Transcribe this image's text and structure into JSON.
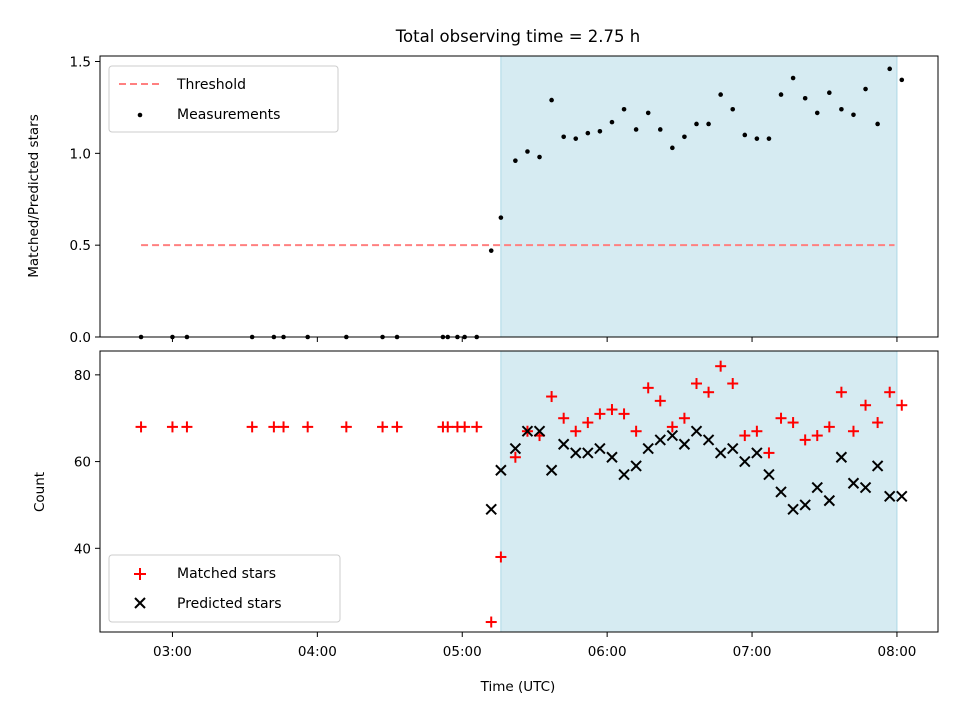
{
  "chart_data": [
    {
      "type": "scatter",
      "title": "Total observing time = 2.75 h",
      "xlabel": "",
      "ylabel": "Matched/Predicted stars",
      "xlim": [
        "02:30",
        "08:17"
      ],
      "ylim": [
        0,
        1.53
      ],
      "yticks": [
        0.0,
        0.5,
        1.0,
        1.5
      ],
      "yticklabels": [
        "0.0",
        "0.5",
        "1.0",
        "1.5"
      ],
      "legend": {
        "placement": "top-left",
        "entries": [
          "Threshold",
          "Measurements"
        ]
      },
      "shaded_region": {
        "x": [
          "05:16",
          "08:00"
        ],
        "color": "#add8e6"
      },
      "threshold": {
        "name": "Threshold",
        "x": [
          "02:47",
          "07:59"
        ],
        "y": 0.5,
        "color": "#ff8080",
        "style": "dashed"
      },
      "series": [
        {
          "name": "Measurements",
          "color": "#000000",
          "marker": "dot",
          "points": [
            [
              "02:47",
              0.0
            ],
            [
              "03:00",
              0.0
            ],
            [
              "03:06",
              0.0
            ],
            [
              "03:33",
              0.0
            ],
            [
              "03:42",
              0.0
            ],
            [
              "03:46",
              0.0
            ],
            [
              "03:56",
              0.0
            ],
            [
              "04:12",
              0.0
            ],
            [
              "04:27",
              0.0
            ],
            [
              "04:33",
              0.0
            ],
            [
              "04:52",
              0.0
            ],
            [
              "04:54",
              0.0
            ],
            [
              "04:58",
              0.0
            ],
            [
              "05:01",
              0.0
            ],
            [
              "05:06",
              0.0
            ],
            [
              "05:12",
              0.47
            ],
            [
              "05:16",
              0.65
            ],
            [
              "05:22",
              0.96
            ],
            [
              "05:27",
              1.01
            ],
            [
              "05:32",
              0.98
            ],
            [
              "05:37",
              1.29
            ],
            [
              "05:42",
              1.09
            ],
            [
              "05:47",
              1.08
            ],
            [
              "05:52",
              1.11
            ],
            [
              "05:57",
              1.12
            ],
            [
              "06:02",
              1.17
            ],
            [
              "06:07",
              1.24
            ],
            [
              "06:12",
              1.13
            ],
            [
              "06:17",
              1.22
            ],
            [
              "06:22",
              1.13
            ],
            [
              "06:27",
              1.03
            ],
            [
              "06:32",
              1.09
            ],
            [
              "06:37",
              1.16
            ],
            [
              "06:42",
              1.16
            ],
            [
              "06:47",
              1.32
            ],
            [
              "06:52",
              1.24
            ],
            [
              "06:57",
              1.1
            ],
            [
              "07:02",
              1.08
            ],
            [
              "07:07",
              1.08
            ],
            [
              "07:12",
              1.32
            ],
            [
              "07:17",
              1.41
            ],
            [
              "07:22",
              1.3
            ],
            [
              "07:27",
              1.22
            ],
            [
              "07:32",
              1.33
            ],
            [
              "07:37",
              1.24
            ],
            [
              "07:42",
              1.21
            ],
            [
              "07:47",
              1.35
            ],
            [
              "07:52",
              1.16
            ],
            [
              "07:57",
              1.46
            ],
            [
              "08:02",
              1.4
            ]
          ]
        }
      ]
    },
    {
      "type": "scatter",
      "title": "",
      "xlabel": "Time (UTC)",
      "ylabel": "Count",
      "xlim": [
        "02:30",
        "08:17"
      ],
      "ylim": [
        20.7,
        85.5
      ],
      "xticks": [
        "03:00",
        "04:00",
        "05:00",
        "06:00",
        "07:00",
        "08:00"
      ],
      "yticks": [
        40,
        60,
        80
      ],
      "legend": {
        "placement": "bottom-left",
        "entries": [
          "Matched stars",
          "Predicted stars"
        ]
      },
      "shaded_region": {
        "x": [
          "05:16",
          "08:00"
        ],
        "color": "#add8e6"
      },
      "series": [
        {
          "name": "Matched stars",
          "color": "#ff0000",
          "marker": "plus",
          "points": [
            [
              "02:47",
              68
            ],
            [
              "03:00",
              68
            ],
            [
              "03:06",
              68
            ],
            [
              "03:33",
              68
            ],
            [
              "03:42",
              68
            ],
            [
              "03:46",
              68
            ],
            [
              "03:56",
              68
            ],
            [
              "04:12",
              68
            ],
            [
              "04:27",
              68
            ],
            [
              "04:33",
              68
            ],
            [
              "04:52",
              68
            ],
            [
              "04:54",
              68
            ],
            [
              "04:58",
              68
            ],
            [
              "05:01",
              68
            ],
            [
              "05:06",
              68
            ],
            [
              "05:12",
              23
            ],
            [
              "05:16",
              38
            ],
            [
              "05:22",
              61
            ],
            [
              "05:27",
              67
            ],
            [
              "05:32",
              66
            ],
            [
              "05:37",
              75
            ],
            [
              "05:42",
              70
            ],
            [
              "05:47",
              67
            ],
            [
              "05:52",
              69
            ],
            [
              "05:57",
              71
            ],
            [
              "06:02",
              72
            ],
            [
              "06:07",
              71
            ],
            [
              "06:12",
              67
            ],
            [
              "06:17",
              77
            ],
            [
              "06:22",
              74
            ],
            [
              "06:27",
              68
            ],
            [
              "06:32",
              70
            ],
            [
              "06:37",
              78
            ],
            [
              "06:42",
              76
            ],
            [
              "06:47",
              82
            ],
            [
              "06:52",
              78
            ],
            [
              "06:57",
              66
            ],
            [
              "07:02",
              67
            ],
            [
              "07:07",
              62
            ],
            [
              "07:12",
              70
            ],
            [
              "07:17",
              69
            ],
            [
              "07:22",
              65
            ],
            [
              "07:27",
              66
            ],
            [
              "07:32",
              68
            ],
            [
              "07:37",
              76
            ],
            [
              "07:42",
              67
            ],
            [
              "07:47",
              73
            ],
            [
              "07:52",
              69
            ],
            [
              "07:57",
              76
            ],
            [
              "08:02",
              73
            ]
          ]
        },
        {
          "name": "Predicted stars",
          "color": "#000000",
          "marker": "x",
          "points": [
            [
              "05:12",
              49
            ],
            [
              "05:16",
              58
            ],
            [
              "05:22",
              63
            ],
            [
              "05:27",
              67
            ],
            [
              "05:32",
              67
            ],
            [
              "05:37",
              58
            ],
            [
              "05:42",
              64
            ],
            [
              "05:47",
              62
            ],
            [
              "05:52",
              62
            ],
            [
              "05:57",
              63
            ],
            [
              "06:02",
              61
            ],
            [
              "06:07",
              57
            ],
            [
              "06:12",
              59
            ],
            [
              "06:17",
              63
            ],
            [
              "06:22",
              65
            ],
            [
              "06:27",
              66
            ],
            [
              "06:32",
              64
            ],
            [
              "06:37",
              67
            ],
            [
              "06:42",
              65
            ],
            [
              "06:47",
              62
            ],
            [
              "06:52",
              63
            ],
            [
              "06:57",
              60
            ],
            [
              "07:02",
              62
            ],
            [
              "07:07",
              57
            ],
            [
              "07:12",
              53
            ],
            [
              "07:17",
              49
            ],
            [
              "07:22",
              50
            ],
            [
              "07:27",
              54
            ],
            [
              "07:32",
              51
            ],
            [
              "07:37",
              61
            ],
            [
              "07:42",
              55
            ],
            [
              "07:47",
              54
            ],
            [
              "07:52",
              59
            ],
            [
              "07:57",
              52
            ],
            [
              "08:02",
              52
            ]
          ]
        }
      ]
    }
  ]
}
